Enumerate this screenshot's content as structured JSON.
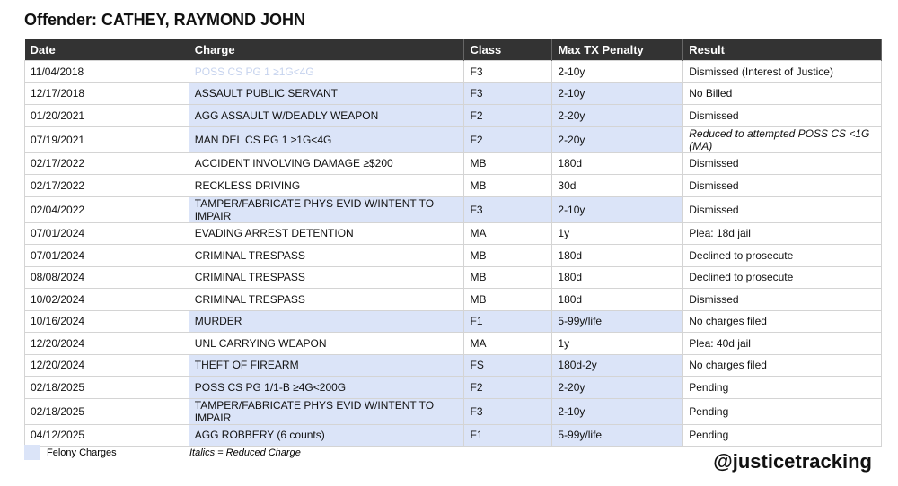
{
  "header": {
    "title": "Offender: CATHEY, RAYMOND JOHN"
  },
  "table": {
    "columns": [
      "Date",
      "Charge",
      "Class",
      "Max TX Penalty",
      "Result"
    ],
    "rows": [
      [
        "11/04/2018",
        "POSS CS PG 1 ≥1G<4G",
        "F3",
        "2-10y",
        "Dismissed (Interest of Justice)"
      ],
      [
        "12/17/2018",
        "ASSAULT PUBLIC SERVANT",
        "F3",
        "2-10y",
        "No Billed"
      ],
      [
        "01/20/2021",
        "AGG ASSAULT W/DEADLY WEAPON",
        "F2",
        "2-20y",
        "Dismissed"
      ],
      [
        "07/19/2021",
        "MAN DEL CS PG 1 ≥1G<4G",
        "F2",
        "2-20y",
        "Reduced to attempted POSS CS <1G (MA)"
      ],
      [
        "02/17/2022",
        "ACCIDENT INVOLVING DAMAGE ≥$200",
        "MB",
        "180d",
        "Dismissed"
      ],
      [
        "02/17/2022",
        "RECKLESS DRIVING",
        "MB",
        "30d",
        "Dismissed"
      ],
      [
        "02/04/2022",
        "TAMPER/FABRICATE PHYS EVID W/INTENT TO IMPAIR",
        "F3",
        "2-10y",
        "Dismissed"
      ],
      [
        "07/01/2024",
        "EVADING ARREST DETENTION",
        "MA",
        "1y",
        "Plea: 18d jail"
      ],
      [
        "07/01/2024",
        "CRIMINAL TRESPASS",
        "MB",
        "180d",
        "Declined to prosecute"
      ],
      [
        "08/08/2024",
        "CRIMINAL TRESPASS",
        "MB",
        "180d",
        "Declined to prosecute"
      ],
      [
        "10/02/2024",
        "CRIMINAL TRESPASS",
        "MB",
        "180d",
        "Dismissed"
      ],
      [
        "10/16/2024",
        "MURDER",
        "F1",
        "5-99y/life",
        "No charges filed"
      ],
      [
        "12/20/2024",
        "UNL CARRYING WEAPON",
        "MA",
        "1y",
        "Plea: 40d jail"
      ],
      [
        "12/20/2024",
        "THEFT OF FIREARM",
        "FS",
        "180d-2y",
        "No charges filed"
      ],
      [
        "02/18/2025",
        "POSS CS PG 1/1-B ≥4G<200G",
        "F2",
        "2-20y",
        "Pending"
      ],
      [
        "02/18/2025",
        "TAMPER/FABRICATE PHYS EVID W/INTENT TO IMPAIR",
        "F3",
        "2-10y",
        "Pending"
      ],
      [
        "04/12/2025",
        "AGG ROBBERY (6 counts)",
        "F1",
        "5-99y/life",
        "Pending"
      ]
    ]
  },
  "legend": {
    "felony": "Felony Charges",
    "italics": "Italics = Reduced Charge"
  },
  "footer": {
    "handle": "@justicetracking"
  }
}
